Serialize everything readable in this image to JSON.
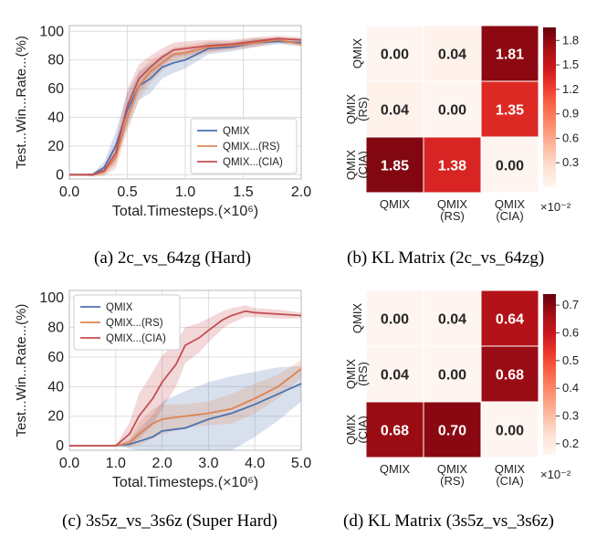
{
  "captions": {
    "a": "(a) 2c_vs_64zg (Hard)",
    "b": "(b) KL Matrix (2c_vs_64zg)",
    "c": "(c) 3s5z_vs_3s6z (Super Hard)",
    "d": "(d) KL Matrix (3s5z_vs_3s6z)"
  },
  "chart_data": [
    {
      "type": "line",
      "ylabel": "Test...Win...Rate...(%)",
      "xlabel": "Total.Timesteps.(×10⁶)",
      "xlim": [
        0,
        2.0
      ],
      "ylim": [
        -3,
        104
      ],
      "xticks": [
        "0.0",
        "0.5",
        "1.0",
        "1.5",
        "2.0"
      ],
      "yticks": [
        "0",
        "20",
        "40",
        "60",
        "80",
        "100"
      ],
      "legend_position": "lower-right",
      "series": [
        {
          "name": "QMIX",
          "color": "#4c72b0",
          "x": [
            0,
            0.2,
            0.3,
            0.4,
            0.5,
            0.6,
            0.7,
            0.8,
            0.9,
            1.0,
            1.2,
            1.4,
            1.6,
            1.8,
            2.0
          ],
          "y": [
            0,
            0,
            5,
            20,
            45,
            62,
            67,
            75,
            78,
            80,
            88,
            89,
            92,
            93,
            92
          ],
          "band": [
            0,
            1,
            4,
            10,
            12,
            10,
            10,
            8,
            7,
            6,
            4,
            3,
            3,
            2,
            2
          ]
        },
        {
          "name": "QMIX...(RS)",
          "color": "#dd8452",
          "x": [
            0,
            0.2,
            0.3,
            0.4,
            0.5,
            0.6,
            0.7,
            0.8,
            0.9,
            1.0,
            1.2,
            1.4,
            1.6,
            1.8,
            2.0
          ],
          "y": [
            0,
            0,
            2,
            12,
            40,
            62,
            72,
            78,
            84,
            85,
            89,
            90,
            92,
            94,
            91
          ],
          "band": [
            0,
            1,
            3,
            8,
            10,
            10,
            8,
            6,
            5,
            5,
            4,
            3,
            3,
            2,
            2
          ]
        },
        {
          "name": "QMIX...(CIA)",
          "color": "#c44e52",
          "x": [
            0,
            0.2,
            0.3,
            0.4,
            0.5,
            0.6,
            0.7,
            0.8,
            0.9,
            1.0,
            1.2,
            1.4,
            1.6,
            1.8,
            2.0
          ],
          "y": [
            0,
            0,
            3,
            15,
            48,
            67,
            75,
            82,
            87,
            88,
            90,
            91,
            93,
            95,
            94
          ],
          "band": [
            0,
            1,
            3,
            8,
            12,
            10,
            8,
            6,
            5,
            5,
            4,
            3,
            3,
            2,
            2
          ]
        }
      ]
    },
    {
      "type": "heatmap",
      "rows": [
        "QMIX",
        "QMIX\n(RS)",
        "QMIX\n(CIA)"
      ],
      "cols": [
        "QMIX",
        "QMIX\n(RS)",
        "QMIX\n(CIA)"
      ],
      "values": [
        [
          0.0,
          0.04,
          1.81
        ],
        [
          0.04,
          0.0,
          1.35
        ],
        [
          1.85,
          1.38,
          0.0
        ]
      ],
      "value_labels": [
        [
          "0.00",
          "0.04",
          "1.81"
        ],
        [
          "0.04",
          "0.00",
          "1.35"
        ],
        [
          "1.85",
          "1.38",
          "0.00"
        ]
      ],
      "colorbar_ticks": [
        "0.3",
        "0.6",
        "0.9",
        "1.2",
        "1.5",
        "1.8"
      ],
      "colorbar_tick_values": [
        0.3,
        0.6,
        0.9,
        1.2,
        1.5,
        1.8
      ],
      "colorbar_range": [
        0,
        1.96
      ],
      "colorbar_scale": "×10⁻²"
    },
    {
      "type": "line",
      "ylabel": "Test...Win...Rate...(%)",
      "xlabel": "Total.Timesteps.(×10⁶)",
      "xlim": [
        0,
        5.0
      ],
      "ylim": [
        -3,
        105
      ],
      "xticks": [
        "0.0",
        "1.0",
        "2.0",
        "3.0",
        "4.0",
        "5.0"
      ],
      "yticks": [
        "0",
        "20",
        "40",
        "60",
        "80",
        "100"
      ],
      "legend_position": "upper-left",
      "series": [
        {
          "name": "QMIX",
          "color": "#4c72b0",
          "x": [
            0,
            1.0,
            1.3,
            1.5,
            1.8,
            2.0,
            2.5,
            3.0,
            3.5,
            4.0,
            4.5,
            5.0
          ],
          "y": [
            0,
            0,
            1,
            3,
            6,
            10,
            12,
            18,
            22,
            28,
            35,
            42
          ],
          "band": [
            0,
            0,
            3,
            8,
            15,
            20,
            25,
            25,
            25,
            22,
            18,
            12
          ]
        },
        {
          "name": "QMIX...(RS)",
          "color": "#dd8452",
          "x": [
            0,
            1.0,
            1.3,
            1.5,
            1.8,
            2.0,
            2.5,
            3.0,
            3.5,
            4.0,
            4.5,
            5.0
          ],
          "y": [
            0,
            0,
            2,
            8,
            15,
            18,
            20,
            22,
            25,
            32,
            40,
            52
          ],
          "band": [
            0,
            0,
            3,
            8,
            10,
            10,
            8,
            8,
            10,
            10,
            8,
            6
          ]
        },
        {
          "name": "QMIX...(CIA)",
          "color": "#c44e52",
          "x": [
            0,
            1.0,
            1.3,
            1.5,
            1.8,
            2.0,
            2.3,
            2.5,
            2.8,
            3.0,
            3.3,
            3.5,
            3.8,
            4.0,
            4.5,
            5.0
          ],
          "y": [
            0,
            0,
            8,
            20,
            32,
            43,
            55,
            68,
            73,
            78,
            85,
            88,
            91,
            90,
            89,
            88
          ],
          "band": [
            0,
            0,
            8,
            15,
            18,
            18,
            15,
            12,
            10,
            8,
            6,
            5,
            4,
            3,
            3,
            2
          ]
        }
      ]
    },
    {
      "type": "heatmap",
      "rows": [
        "QMIX",
        "QMIX\n(RS)",
        "QMIX\n(CIA)"
      ],
      "cols": [
        "QMIX",
        "QMIX\n(RS)",
        "QMIX\n(CIA)"
      ],
      "values": [
        [
          0.0,
          0.04,
          0.64
        ],
        [
          0.04,
          0.0,
          0.68
        ],
        [
          0.68,
          0.7,
          0.0
        ]
      ],
      "value_labels": [
        [
          "0.00",
          "0.04",
          "0.64"
        ],
        [
          "0.04",
          "0.00",
          "0.68"
        ],
        [
          "0.68",
          "0.70",
          "0.00"
        ]
      ],
      "colorbar_ticks": [
        "0.2",
        "0.3",
        "0.4",
        "0.5",
        "0.6",
        "0.7"
      ],
      "colorbar_tick_values": [
        0.2,
        0.3,
        0.4,
        0.5,
        0.6,
        0.7
      ],
      "colorbar_range": [
        0.16,
        0.74
      ],
      "colorbar_scale": "×10⁻²"
    }
  ]
}
